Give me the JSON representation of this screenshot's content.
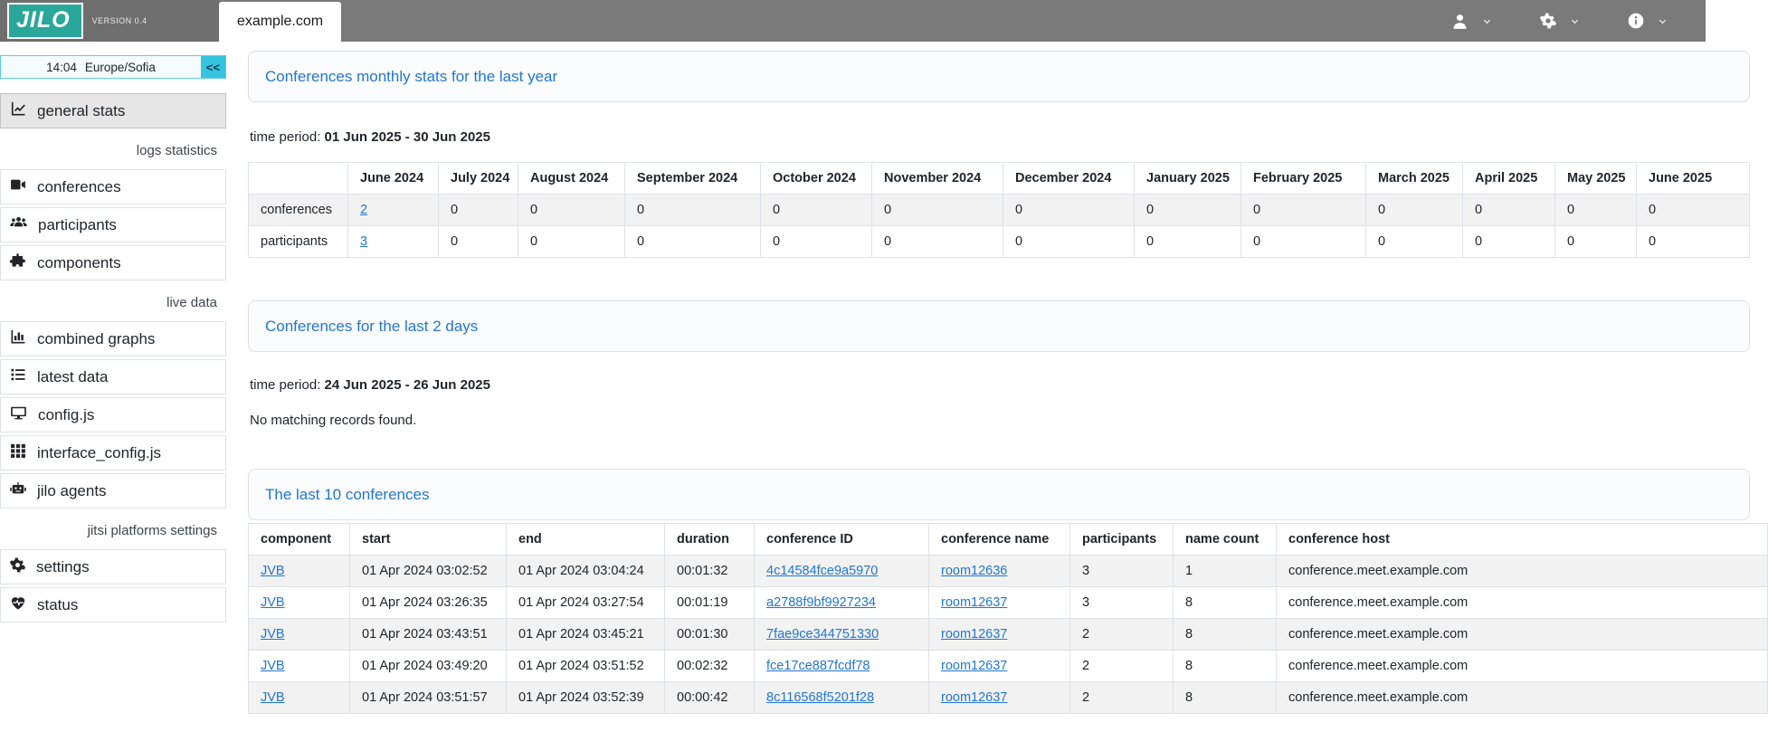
{
  "navbar": {
    "logo": "JILO",
    "version": "VERSION 0.4",
    "platform_tab": "example.com"
  },
  "sidebar": {
    "clock_time": "14:04",
    "clock_timezone": "Europe/Sofia",
    "collapse_button": "<<",
    "sections": {
      "logs": "logs statistics",
      "live": "live data",
      "platforms": "jitsi platforms settings"
    },
    "items": {
      "general_stats": "general stats",
      "conferences": "conferences",
      "participants": "participants",
      "components": "components",
      "combined_graphs": "combined graphs",
      "latest_data": "latest data",
      "config_js": "config.js",
      "interface_config_js": "interface_config.js",
      "jilo_agents": "jilo agents",
      "settings": "settings",
      "status": "status"
    }
  },
  "monthly_stats": {
    "title": "Conferences monthly stats for the last year",
    "time_period_label": "time period:",
    "time_period": "01 Jun 2025 - 30 Jun 2025",
    "columns": [
      "",
      "June 2024",
      "July 2024",
      "August 2024",
      "September 2024",
      "October 2024",
      "November 2024",
      "December 2024",
      "January 2025",
      "February 2025",
      "March 2025",
      "April 2025",
      "May 2025",
      "June 2025"
    ],
    "link_columns": [
      1
    ],
    "rows": [
      [
        "conferences",
        "2",
        "0",
        "0",
        "0",
        "0",
        "0",
        "0",
        "0",
        "0",
        "0",
        "0",
        "0",
        "0"
      ],
      [
        "participants",
        "3",
        "0",
        "0",
        "0",
        "0",
        "0",
        "0",
        "0",
        "0",
        "0",
        "0",
        "0",
        "0"
      ]
    ]
  },
  "last_2_days": {
    "title": "Conferences for the last 2 days",
    "time_period_label": "time period:",
    "time_period": "24 Jun 2025 - 26 Jun 2025",
    "empty_message": "No matching records found."
  },
  "last_10": {
    "title": "The last 10 conferences",
    "columns": [
      "component",
      "start",
      "end",
      "duration",
      "conference ID",
      "conference name",
      "participants",
      "name count",
      "conference host"
    ],
    "link_columns": [
      0,
      4,
      5
    ],
    "rows": [
      [
        "JVB",
        "01 Apr 2024 03:02:52",
        "01 Apr 2024 03:04:24",
        "00:01:32",
        "4c14584fce9a5970",
        "room12636",
        "3",
        "1",
        "conference.meet.example.com"
      ],
      [
        "JVB",
        "01 Apr 2024 03:26:35",
        "01 Apr 2024 03:27:54",
        "00:01:19",
        "a2788f9bf9927234",
        "room12637",
        "3",
        "8",
        "conference.meet.example.com"
      ],
      [
        "JVB",
        "01 Apr 2024 03:43:51",
        "01 Apr 2024 03:45:21",
        "00:01:30",
        "7fae9ce344751330",
        "room12637",
        "2",
        "8",
        "conference.meet.example.com"
      ],
      [
        "JVB",
        "01 Apr 2024 03:49:20",
        "01 Apr 2024 03:51:52",
        "00:02:32",
        "fce17ce887fcdf78",
        "room12637",
        "2",
        "8",
        "conference.meet.example.com"
      ],
      [
        "JVB",
        "01 Apr 2024 03:51:57",
        "01 Apr 2024 03:52:39",
        "00:00:42",
        "8c116568f5201f28",
        "room12637",
        "2",
        "8",
        "conference.meet.example.com"
      ]
    ]
  },
  "icons": {
    "navbar": [
      "user-icon",
      "gear-icon",
      "info-icon",
      "chevron-down-icon"
    ],
    "sidebar": [
      "chart-line-icon",
      "video-camera-icon",
      "users-icon",
      "puzzle-icon",
      "chart-column-icon",
      "list-icon",
      "monitor-icon",
      "grid-icon",
      "robot-icon",
      "gear-icon",
      "heart-pulse-icon"
    ]
  },
  "colors": {
    "accent_teal": "#2aa79b",
    "navbar_gray": "#7a7a7a",
    "link_blue": "#2276d2",
    "widget_cyan": "#35c3de",
    "row_stripe": "#f2f2f2",
    "border": "#dee2e6"
  }
}
